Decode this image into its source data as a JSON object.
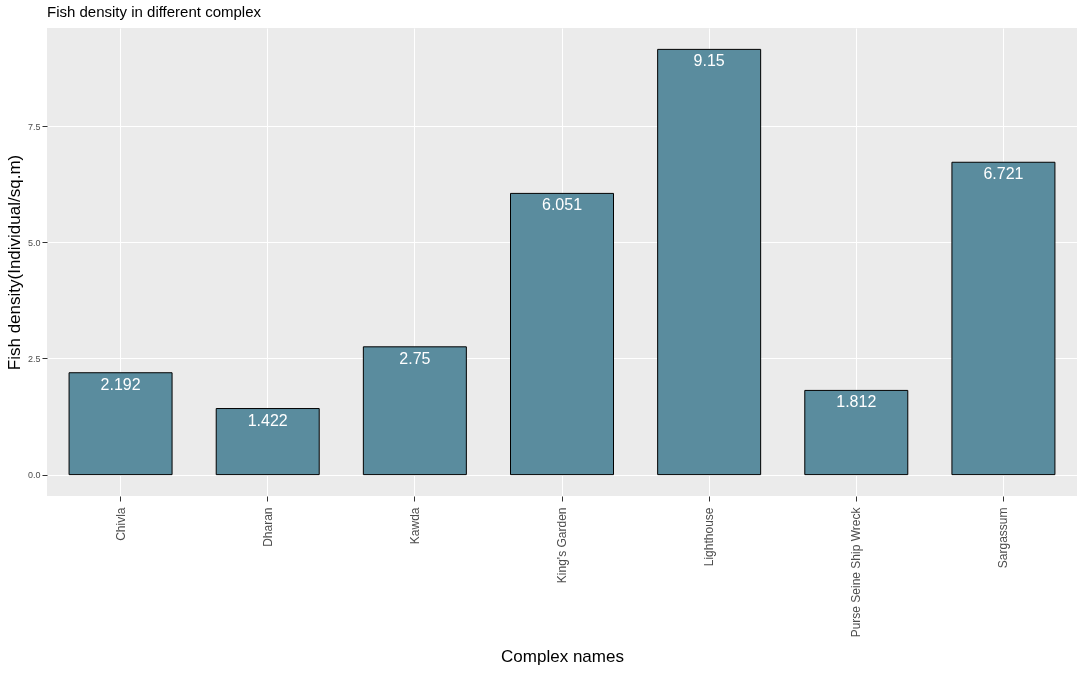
{
  "chart_data": {
    "type": "bar",
    "title": "Fish density in different complex",
    "xlabel": "Complex names",
    "ylabel": "Fish density(Individual/sq.m)",
    "categories": [
      "Chivla",
      "Dharan",
      "Kawda",
      "King's Garden",
      "Lighthouse",
      "Purse Seine Ship Wreck",
      "Sargassum"
    ],
    "values": [
      2.192,
      1.422,
      2.75,
      6.051,
      9.15,
      1.812,
      6.721
    ],
    "color": "#5a8c9e",
    "ylim": [
      -0.46,
      9.61
    ],
    "yticks": [
      {
        "value": 0,
        "label": "0.0"
      },
      2.5,
      {
        "value": 5,
        "label": "5.0"
      },
      7.5
    ],
    "grid": true,
    "data_labels": true
  }
}
